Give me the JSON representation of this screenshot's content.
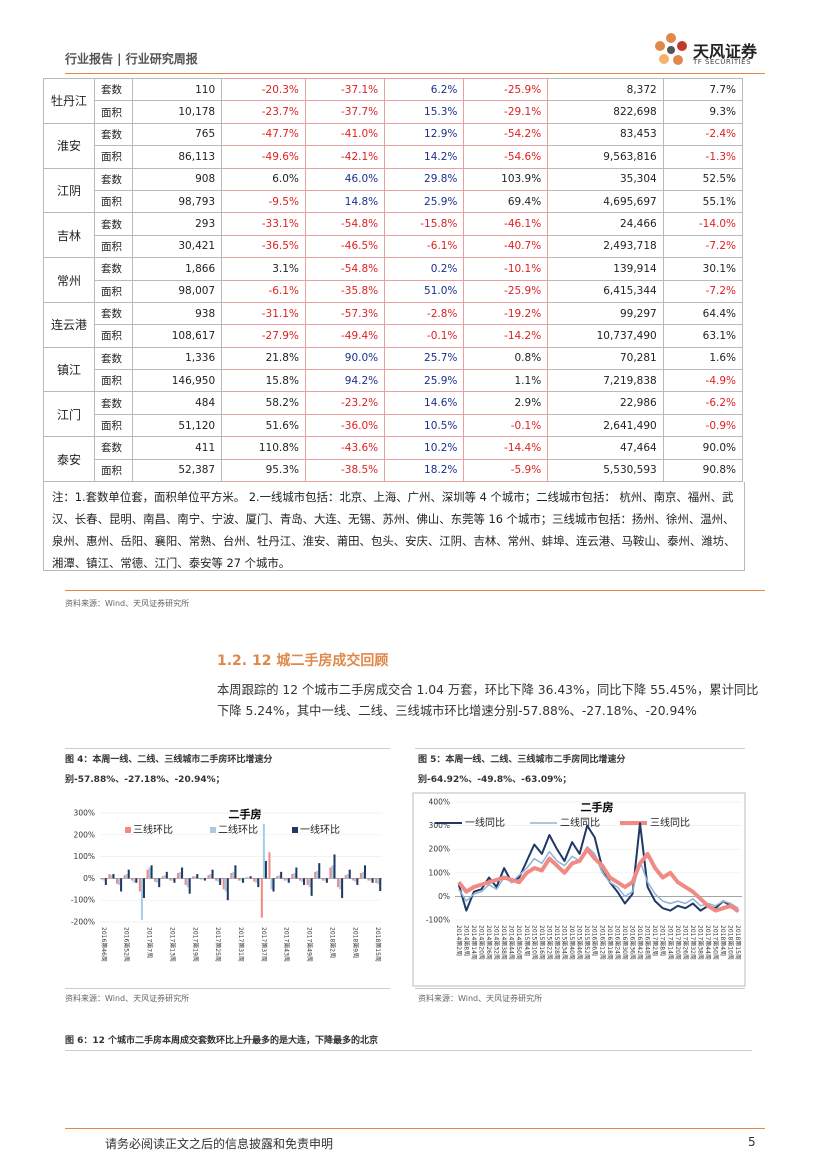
{
  "header": {
    "left": "行业报告 | 行业研究周报",
    "brand": "天风证券",
    "brand_en": "TF SECURITIES"
  },
  "table": {
    "groups": [
      {
        "city": "牡丹江",
        "rows": [
          [
            "套数",
            "110",
            "-20.3%",
            "-37.1%",
            "6.2%",
            "-25.9%",
            "8,372",
            "7.7%"
          ],
          [
            "面积",
            "10,178",
            "-23.7%",
            "-37.7%",
            "15.3%",
            "-29.1%",
            "822,698",
            "9.3%"
          ]
        ]
      },
      {
        "city": "淮安",
        "rows": [
          [
            "套数",
            "765",
            "-47.7%",
            "-41.0%",
            "12.9%",
            "-54.2%",
            "83,453",
            "-2.4%"
          ],
          [
            "面积",
            "86,113",
            "-49.6%",
            "-42.1%",
            "14.2%",
            "-54.6%",
            "9,563,816",
            "-1.3%"
          ]
        ]
      },
      {
        "city": "江阴",
        "rows": [
          [
            "套数",
            "908",
            "6.0%",
            "46.0%",
            "29.8%",
            "103.9%",
            "35,304",
            "52.5%"
          ],
          [
            "面积",
            "98,793",
            "-9.5%",
            "14.8%",
            "25.9%",
            "69.4%",
            "4,695,697",
            "55.1%"
          ]
        ]
      },
      {
        "city": "吉林",
        "rows": [
          [
            "套数",
            "293",
            "-33.1%",
            "-54.8%",
            "-15.8%",
            "-46.1%",
            "24,466",
            "-14.0%"
          ],
          [
            "面积",
            "30,421",
            "-36.5%",
            "-46.5%",
            "-6.1%",
            "-40.7%",
            "2,493,718",
            "-7.2%"
          ]
        ]
      },
      {
        "city": "常州",
        "rows": [
          [
            "套数",
            "1,866",
            "3.1%",
            "-54.8%",
            "0.2%",
            "-10.1%",
            "139,914",
            "30.1%"
          ],
          [
            "面积",
            "98,007",
            "-6.1%",
            "-35.8%",
            "51.0%",
            "-25.9%",
            "6,415,344",
            "-7.2%"
          ]
        ]
      },
      {
        "city": "连云港",
        "rows": [
          [
            "套数",
            "938",
            "-31.1%",
            "-57.3%",
            "-2.8%",
            "-19.2%",
            "99,297",
            "64.4%"
          ],
          [
            "面积",
            "108,617",
            "-27.9%",
            "-49.4%",
            "-0.1%",
            "-14.2%",
            "10,737,490",
            "63.1%"
          ]
        ]
      },
      {
        "city": "镇江",
        "rows": [
          [
            "套数",
            "1,336",
            "21.8%",
            "90.0%",
            "25.7%",
            "0.8%",
            "70,281",
            "1.6%"
          ],
          [
            "面积",
            "146,950",
            "15.8%",
            "94.2%",
            "25.9%",
            "1.1%",
            "7,219,838",
            "-4.9%"
          ]
        ]
      },
      {
        "city": "江门",
        "rows": [
          [
            "套数",
            "484",
            "58.2%",
            "-23.2%",
            "14.6%",
            "2.9%",
            "22,986",
            "-6.2%"
          ],
          [
            "面积",
            "51,120",
            "51.6%",
            "-36.0%",
            "10.5%",
            "-0.1%",
            "2,641,490",
            "-0.9%"
          ]
        ]
      },
      {
        "city": "泰安",
        "rows": [
          [
            "套数",
            "411",
            "110.8%",
            "-43.6%",
            "10.2%",
            "-14.4%",
            "47,464",
            "90.0%"
          ],
          [
            "面积",
            "52,387",
            "95.3%",
            "-38.5%",
            "18.2%",
            "-5.9%",
            "5,530,593",
            "90.8%"
          ]
        ]
      }
    ]
  },
  "note": "注：1.套数单位套，面积单位平方米。  2.一线城市包括：北京、上海、广州、深圳等 4 个城市；二线城市包括： 杭州、南京、福州、武汉、长春、昆明、南昌、南宁、宁波、厦门、青岛、大连、无锡、苏州、佛山、东莞等 16 个城市；三线城市包括：扬州、徐州、温州、泉州、惠州、岳阳、襄阳、常熟、台州、牡丹江、淮安、莆田、包头、安庆、江阴、吉林、常州、蚌埠、连云港、马鞍山、泰州、潍坊、湘潭、镇江、常德、江门、泰安等 27 个城市。",
  "source_table": "资料来源：Wind、天风证券研究所",
  "section_title": "1.2. 12 城二手房成交回顾",
  "paragraph": "本周跟踪的 12 个城市二手房成交合 1.04 万套，环比下降 36.43%，同比下降 55.45%，累计同比下降  5.24%，其中一线、二线、三线城市环比增速分别-57.88%、-27.18%、-20.94%",
  "fig4_caption": "图 4：本周一线、二线、三线城市二手房环比增速分别-57.88%、-27.18%、-20.94%；",
  "fig5_caption": "图 5：本周一线、二线、三线城市二手房同比增速分别-64.92%、-49.8%、-63.09%；",
  "source_fig4": "资料来源：Wind、天风证券研究所",
  "source_fig5": "资料来源：Wind、天风证券研究所",
  "fig6_caption": "图 6：12 个城市二手房本周成交套数环比上升最多的是大连，下降最多的北京",
  "footer": {
    "disclaimer": "请务必阅读正文之后的信息披露和免责申明",
    "page": "5"
  },
  "chart_data": [
    {
      "type": "bar",
      "title": "二手房",
      "categories": [
        "2016第46周",
        null,
        null,
        "2016第52周",
        null,
        null,
        "2017第7周",
        null,
        null,
        "2017第13周",
        null,
        null,
        "2017第19周",
        null,
        null,
        "2017第25周",
        null,
        null,
        "2017第31周",
        null,
        null,
        "2017第37周",
        null,
        null,
        "2017第43周",
        null,
        null,
        "2017第49周",
        null,
        null,
        "2018第2周",
        null,
        null,
        "2018第9周",
        null,
        null,
        "2018第15周"
      ],
      "series": [
        {
          "name": "三线环比",
          "color": "#f08a84",
          "values": [
            -5,
            20,
            -25,
            15,
            -10,
            -60,
            40,
            -15,
            10,
            -10,
            25,
            -30,
            10,
            -5,
            15,
            -10,
            -50,
            25,
            -10,
            5,
            -15,
            -180,
            120,
            10,
            -10,
            20,
            -10,
            -30,
            30,
            -10,
            50,
            -40,
            15,
            -10,
            25,
            -10,
            -20.94
          ]
        },
        {
          "name": "二线环比",
          "color": "#a9cbe6",
          "values": [
            -10,
            15,
            -30,
            20,
            -20,
            -190,
            50,
            -20,
            15,
            -10,
            30,
            -40,
            10,
            -5,
            20,
            -15,
            -60,
            30,
            -10,
            5,
            -20,
            250,
            -50,
            15,
            -10,
            25,
            -15,
            -40,
            35,
            -10,
            60,
            -50,
            20,
            -15,
            30,
            -10,
            -27.18
          ]
        },
        {
          "name": "一线环比",
          "color": "#1f3864",
          "values": [
            -30,
            20,
            -60,
            40,
            -20,
            -90,
            60,
            -40,
            30,
            -20,
            50,
            -70,
            20,
            -10,
            40,
            -30,
            -100,
            60,
            -20,
            10,
            -40,
            80,
            -60,
            30,
            -20,
            50,
            -30,
            -80,
            70,
            -20,
            110,
            -90,
            40,
            -30,
            60,
            -20,
            -57.88
          ]
        }
      ],
      "ylim": [
        -200,
        300
      ],
      "yticks": [
        {
          "value": -200,
          "label": "-200%"
        },
        {
          "value": -100,
          "label": "-100%"
        },
        {
          "value": 0,
          "label": "0%"
        },
        {
          "value": 100,
          "label": "100%"
        },
        {
          "value": 200,
          "label": "200%"
        },
        {
          "value": 300,
          "label": "300%"
        }
      ]
    },
    {
      "type": "line",
      "title": "二手房",
      "categories": [
        "2014第2周",
        "2014第8周",
        "2014第14周",
        "2014第20周",
        "2014第26周",
        "2014第32周",
        "2014第38周",
        "2014第44周",
        "2014第50周",
        "2015第4周",
        "2015第10周",
        "2015第16周",
        "2015第22周",
        "2015第28周",
        "2015第34周",
        "2015第40周",
        "2015第46周",
        "2015第52周",
        "2016第6周",
        "2016第12周",
        "2016第18周",
        "2016第24周",
        "2016第30周",
        "2016第36周",
        "2016第42周",
        "2016第48周",
        "2017第2周",
        "2017第8周",
        "2017第14周",
        "2017第20周",
        "2017第26周",
        "2017第32周",
        "2017第38周",
        "2017第44周",
        "2017第50周",
        "2018第4周",
        "2018第10周",
        "2018第15周"
      ],
      "series": [
        {
          "name": "一线同比",
          "color": "#1f3864",
          "width": 2,
          "values": [
            50,
            -60,
            20,
            30,
            80,
            40,
            120,
            60,
            80,
            150,
            220,
            180,
            260,
            200,
            150,
            230,
            180,
            300,
            250,
            120,
            60,
            20,
            -30,
            10,
            310,
            40,
            -20,
            -50,
            -60,
            -40,
            -50,
            -30,
            -60,
            -40,
            -50,
            -20,
            -40,
            -64.92
          ]
        },
        {
          "name": "二线同比",
          "color": "#8fb4da",
          "width": 1.5,
          "values": [
            30,
            -20,
            10,
            20,
            50,
            30,
            80,
            60,
            90,
            120,
            160,
            140,
            190,
            150,
            130,
            170,
            150,
            210,
            180,
            100,
            60,
            40,
            0,
            20,
            150,
            60,
            10,
            -20,
            -30,
            -20,
            -30,
            -10,
            -40,
            -30,
            -40,
            -20,
            -30,
            -49.8
          ]
        },
        {
          "name": "三线同比",
          "color": "#f08a84",
          "width": 4,
          "values": [
            60,
            20,
            40,
            50,
            60,
            70,
            80,
            70,
            60,
            100,
            120,
            110,
            160,
            130,
            100,
            140,
            150,
            200,
            160,
            130,
            80,
            60,
            40,
            60,
            140,
            180,
            120,
            80,
            100,
            60,
            40,
            20,
            -10,
            -40,
            -60,
            -50,
            -40,
            -63.09
          ]
        }
      ],
      "ylim": [
        -100,
        400
      ],
      "yticks": [
        {
          "value": -100,
          "label": "-100%"
        },
        {
          "value": 0,
          "label": "0%"
        },
        {
          "value": 100,
          "label": "100%"
        },
        {
          "value": 200,
          "label": "200%"
        },
        {
          "value": 300,
          "label": "300%"
        },
        {
          "value": 400,
          "label": "400%"
        }
      ]
    }
  ]
}
